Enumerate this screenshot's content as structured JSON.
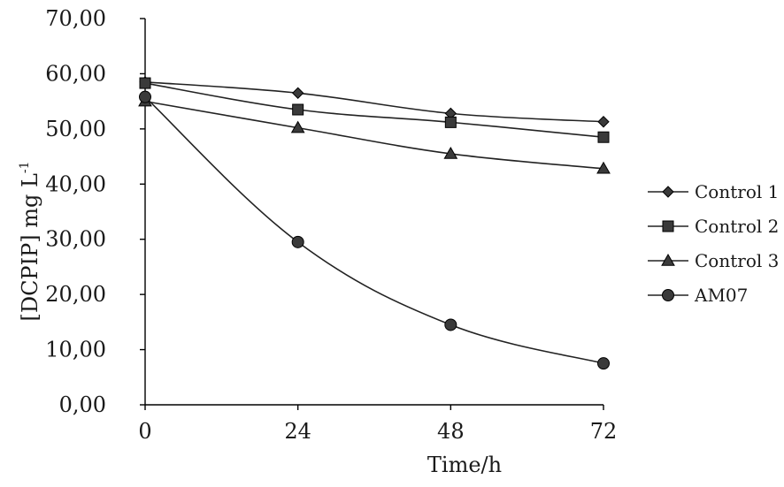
{
  "chart_data": {
    "type": "line",
    "title": "",
    "xlabel": "Time/h",
    "ylabel": "[DCPIP] mg L",
    "ylabel_superscript": "-1",
    "x": [
      0,
      24,
      48,
      72
    ],
    "x_tick_labels": [
      "0",
      "24",
      "48",
      "72"
    ],
    "xlim": [
      0,
      72
    ],
    "ylim": [
      0,
      70
    ],
    "y_ticks": [
      0,
      10,
      20,
      30,
      40,
      50,
      60,
      70
    ],
    "y_tick_labels": [
      "0,00",
      "10,00",
      "20,00",
      "30,00",
      "40,00",
      "50,00",
      "60,00",
      "70,00"
    ],
    "grid": false,
    "legend_position": "right",
    "series": [
      {
        "name": "Control 1",
        "marker": "diamond",
        "values": [
          58.5,
          56.5,
          52.8,
          51.3
        ]
      },
      {
        "name": "Control 2",
        "marker": "square",
        "values": [
          58.3,
          53.5,
          51.2,
          48.5
        ]
      },
      {
        "name": "Control 3",
        "marker": "triangle",
        "values": [
          55.0,
          50.2,
          45.5,
          42.8
        ]
      },
      {
        "name": "AM07",
        "marker": "circle",
        "values": [
          55.8,
          29.5,
          14.5,
          7.5
        ]
      }
    ]
  }
}
